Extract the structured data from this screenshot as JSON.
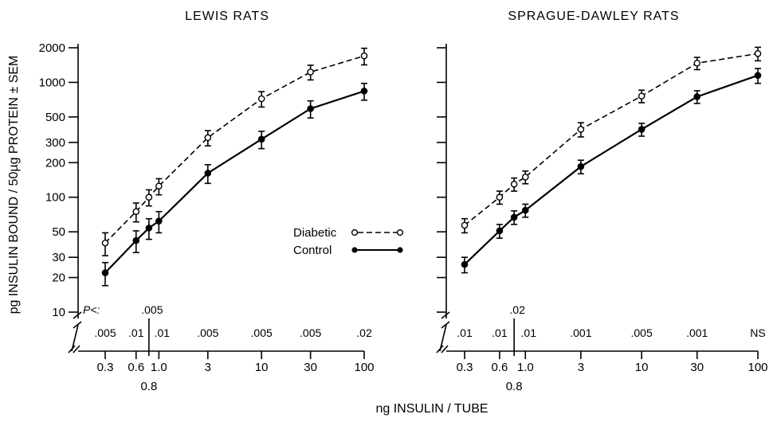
{
  "ylabel": "pg INSULIN BOUND / 50µg PROTEIN ± SEM",
  "xlabel": "ng INSULIN / TUBE",
  "legend": {
    "diabetic": "Diabetic",
    "control": "Control"
  },
  "p_prefix": "P<:",
  "y_ticks": [
    "10",
    "20",
    "30",
    "50",
    "100",
    "200",
    "300",
    "500",
    "1000",
    "2000"
  ],
  "chart_data": [
    {
      "type": "line",
      "title": "LEWIS RATS",
      "x_scale": "log",
      "y_scale": "log",
      "x": [
        0.3,
        0.6,
        0.8,
        1.0,
        3,
        10,
        30,
        100
      ],
      "x_tick_labels": [
        "0.3",
        "0.6",
        "0.8",
        "1.0",
        "3",
        "10",
        "30",
        "100"
      ],
      "series": [
        {
          "name": "Diabetic",
          "marker": "open-circle",
          "line": "dashed",
          "values": [
            40,
            75,
            100,
            125,
            330,
            720,
            1230,
            1700
          ],
          "error": [
            9,
            14,
            16,
            20,
            50,
            110,
            180,
            280
          ]
        },
        {
          "name": "Control",
          "marker": "filled-circle",
          "line": "solid",
          "values": [
            22,
            42,
            54,
            62,
            162,
            320,
            590,
            840
          ],
          "error": [
            5,
            9,
            11,
            13,
            30,
            55,
            100,
            140
          ]
        }
      ],
      "p_values": [
        ".005",
        ".01",
        ".005",
        ".01",
        ".005",
        ".005",
        ".005",
        ".02"
      ]
    },
    {
      "type": "line",
      "title": "SPRAGUE-DAWLEY RATS",
      "x_scale": "log",
      "y_scale": "log",
      "x": [
        0.3,
        0.6,
        0.8,
        1.0,
        3,
        10,
        30,
        100
      ],
      "x_tick_labels": [
        "0.3",
        "0.6",
        "0.8",
        "1.0",
        "3",
        "10",
        "30",
        "100"
      ],
      "series": [
        {
          "name": "Diabetic",
          "marker": "open-circle",
          "line": "dashed",
          "values": [
            57,
            100,
            130,
            150,
            390,
            760,
            1470,
            1780
          ],
          "error": [
            8,
            13,
            17,
            19,
            55,
            95,
            180,
            240
          ]
        },
        {
          "name": "Control",
          "marker": "filled-circle",
          "line": "solid",
          "values": [
            26,
            51,
            67,
            77,
            185,
            390,
            750,
            1150
          ],
          "error": [
            4,
            7,
            9,
            10,
            25,
            50,
            95,
            170
          ]
        }
      ],
      "p_values": [
        ".01",
        ".01",
        ".02",
        ".01",
        ".001",
        ".005",
        ".001",
        "NS"
      ]
    }
  ]
}
